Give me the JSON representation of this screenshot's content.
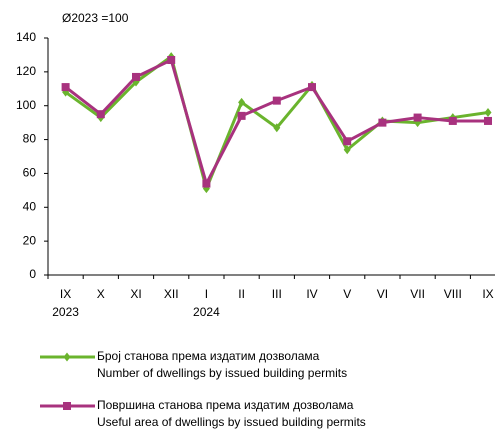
{
  "chart_data": {
    "type": "line",
    "subtitle": "Ø2023 =100",
    "categories": [
      "IX",
      "X",
      "XI",
      "XII",
      "I",
      "II",
      "III",
      "IV",
      "V",
      "VI",
      "VII",
      "VIII",
      "IX"
    ],
    "year_labels": [
      "2023",
      null,
      null,
      null,
      "2024",
      null,
      null,
      null,
      null,
      null,
      null,
      null,
      null
    ],
    "series": [
      {
        "name": "Број станова према издатим дозволама\nNumber of dwellings by issued building permits",
        "color": "#6ab42d",
        "marker": "diamond",
        "values": [
          108,
          93,
          114,
          129,
          51,
          102,
          87,
          112,
          74,
          91,
          90,
          93,
          96
        ]
      },
      {
        "name": "Површина станова према издатим дозволама\nUseful area of dwellings by issued building permits",
        "color": "#a8327e",
        "marker": "square",
        "values": [
          111,
          95,
          117,
          127,
          54,
          94,
          103,
          111,
          79,
          90,
          93,
          91,
          91
        ]
      }
    ],
    "ylim": [
      0,
      140
    ],
    "yticks": [
      0,
      20,
      40,
      60,
      80,
      100,
      120,
      140
    ],
    "grid": false
  }
}
